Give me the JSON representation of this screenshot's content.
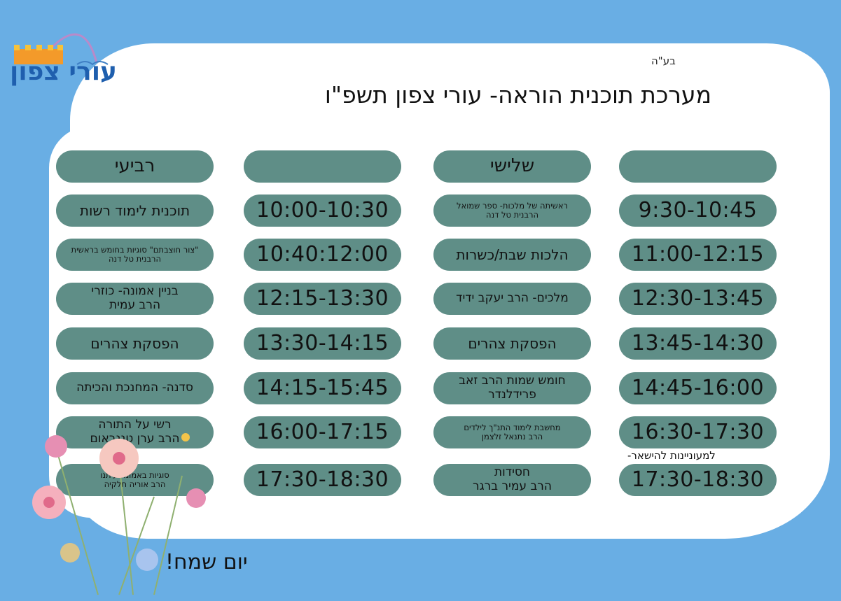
{
  "logo": {
    "text": "עורי צפון"
  },
  "header": {
    "bh": "בע\"ה",
    "title": "מערכת תוכנית הוראה- עורי צפון תשפ\"ו"
  },
  "columns": [
    {
      "header": "",
      "type": "time",
      "cells": [
        "9:30-10:45",
        "11:00-12:15",
        "12:30-13:45",
        "13:45-14:30",
        "14:45-16:00",
        "16:30-17:30",
        "17:30-18:30"
      ]
    },
    {
      "header": "שלישי",
      "type": "text",
      "cells": [
        "ראשיתה של מלכות- ספר שמואל\nהרבנית טל דנה",
        "הלכות שבת/כשרות",
        "מלכים- הרב יעקב ידיד",
        "הפסקת צהרים",
        "חומש שמות הרב זאב פרידלנדר",
        "מחשבת לימוד התנ\"ך לילדים\nהרב נתנאל זלצמן",
        "חסידות\nהרב עמיר ברגר"
      ]
    },
    {
      "header": "",
      "type": "time",
      "cells": [
        "10:00-10:30",
        "10:40:12:00",
        "12:15-13:30",
        "13:30-14:15",
        "14:15-15:45",
        "16:00-17:15",
        "17:30-18:30"
      ]
    },
    {
      "header": "רביעי",
      "type": "text",
      "cells": [
        "תוכנית לימוד רשות",
        "\"צור חוצבתם\" סוגיות בחומש בראשית\nהרבנית טל דנה",
        "בניין אמונה- כוזרי\nהרב עמית",
        "הפסקת צהרים",
        "סדנה- המחנכת והכיתה",
        "רשי על התורה\nהרב ערן טננבאום",
        "סוגיות באמונת עיתנו\nהרב אוריה חלקיה"
      ]
    }
  ],
  "note": "למעוניינות להישאר-",
  "footer": "יום שמח!",
  "colors": {
    "background": "#69aee4",
    "pill": "#5f8e87",
    "card": "#ffffff"
  }
}
